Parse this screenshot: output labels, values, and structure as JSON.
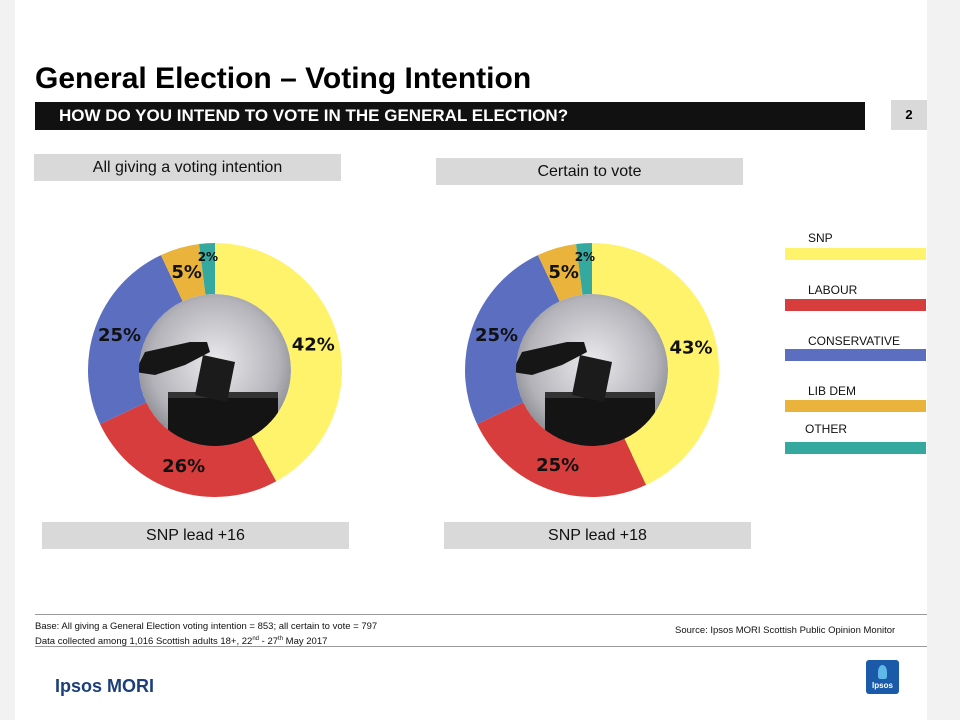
{
  "title": "General Election – Voting Intention",
  "question": "HOW DO YOU INTEND TO VOTE IN THE GENERAL ELECTION?",
  "page_number": "2",
  "colors": {
    "SNP": "#fff36b",
    "LABOUR": "#d83d3d",
    "CONSERVATIVE": "#5b6ec0",
    "LIB DEM": "#eab43c",
    "OTHER": "#35a8a0"
  },
  "legend": [
    "SNP",
    "LABOUR",
    "CONSERVATIVE",
    "LIB DEM",
    "OTHER"
  ],
  "charts": [
    {
      "heading": "All giving a voting intention",
      "lead": "SNP lead +16"
    },
    {
      "heading": "Certain to vote",
      "lead": "SNP lead +18"
    }
  ],
  "chart_data": [
    {
      "type": "pie",
      "title": "All giving a voting intention",
      "categories": [
        "SNP",
        "LABOUR",
        "CONSERVATIVE",
        "LIB DEM",
        "OTHER"
      ],
      "values": [
        42,
        26,
        25,
        5,
        2
      ],
      "labels": [
        "42%",
        "26%",
        "25%",
        "5%",
        "2%"
      ]
    },
    {
      "type": "pie",
      "title": "Certain to vote",
      "categories": [
        "SNP",
        "LABOUR",
        "CONSERVATIVE",
        "LIB DEM",
        "OTHER"
      ],
      "values": [
        43,
        25,
        25,
        5,
        2
      ],
      "labels": [
        "43%",
        "25%",
        "25%",
        "5%",
        "2%"
      ]
    }
  ],
  "footer": {
    "base": "Base: All giving a General Election  voting intention = 853; all certain to vote = 797",
    "collected_pre": "Data collected among 1,016 Scottish adults 18+, 22",
    "sup1": "nd",
    "collected_mid": " - 27",
    "sup2": "th",
    "collected_post": " May 2017",
    "source": "Source: Ipsos MORI  Scottish  Public Opinion Monitor",
    "brand": "Ipsos MORI",
    "logo_text": "Ipsos"
  }
}
